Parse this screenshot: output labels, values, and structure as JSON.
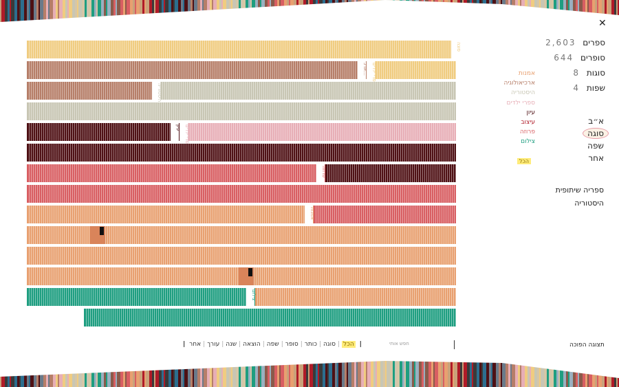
{
  "stats": [
    {
      "num": "2,603",
      "label": "ספרים"
    },
    {
      "num": "644",
      "label": "סופרים"
    },
    {
      "num": "8",
      "label": "סוגות"
    },
    {
      "num": "4",
      "label": "שפות"
    }
  ],
  "legend": [
    {
      "label": "אמנות",
      "color": "#e8a070"
    },
    {
      "label": "ארכיאולוגיה",
      "color": "#b67e68"
    },
    {
      "label": "היסטוריה",
      "color": "#c8c6b4"
    },
    {
      "label": "ספרי ילדים",
      "color": "#e7aeb6"
    },
    {
      "label": "עיון",
      "color": "#4e1014"
    },
    {
      "label": "עיצוב",
      "color": "#b01b28"
    },
    {
      "label": "פרוזה",
      "color": "#d85e62"
    },
    {
      "label": "צילום",
      "color": "#1e9e80"
    }
  ],
  "sort": {
    "items": [
      "א״ב",
      "סוגה",
      "שפה",
      "אחר"
    ],
    "active": 1,
    "all_label": "הכל"
  },
  "links": [
    "ספריה שיתופית",
    "היסטוריה"
  ],
  "toggle_label": "תצוגה הפוכה",
  "search_placeholder": "חפש אותי",
  "filters": {
    "items": [
      "הכל",
      "סוגה",
      "כותר",
      "סופר",
      "שפה",
      "הוצאה",
      "שנה",
      "עורך",
      "אחר"
    ],
    "active": 0
  },
  "shelves": [
    {
      "segments": [
        {
          "color": "#f0cc80",
          "label": "סוגה"
        }
      ]
    },
    {
      "segments": [
        {
          "color": "#f0cc80",
          "label": "ספרי ילדים"
        },
        {
          "color": "#b67e68",
          "label": "ארכ..."
        }
      ]
    },
    {
      "segments": [
        {
          "color": "#c8c6b4",
          "label": "היסטוריה"
        },
        {
          "color": "#b67e68",
          "label": ""
        }
      ]
    },
    {
      "segments": [
        {
          "color": "#c8c6b4",
          "label": ""
        }
      ]
    },
    {
      "segments": [
        {
          "color": "#e7aeb6",
          "label": "ספרי ילדים"
        },
        {
          "color": "#4e1014",
          "label": "עיון"
        }
      ]
    },
    {
      "segments": [
        {
          "color": "#4e1014",
          "label": ""
        }
      ]
    },
    {
      "segments": [
        {
          "color": "#4e1014",
          "label": ""
        },
        {
          "color": "#d85e62",
          "label": "פרוזה"
        }
      ]
    },
    {
      "segments": [
        {
          "color": "#d85e62",
          "label": ""
        }
      ]
    },
    {
      "segments": [
        {
          "color": "#d85e62",
          "label": ""
        },
        {
          "color": "#e8a070",
          "label": "אמנות"
        }
      ]
    },
    {
      "segments": [
        {
          "color": "#e8a070",
          "label": ""
        }
      ]
    },
    {
      "segments": [
        {
          "color": "#e8a070",
          "label": ""
        }
      ]
    },
    {
      "segments": [
        {
          "color": "#e8a070",
          "label": ""
        }
      ]
    },
    {
      "segments": [
        {
          "color": "#e8a070",
          "label": ""
        },
        {
          "color": "#1e9e80",
          "label": "צילום"
        }
      ]
    },
    {
      "segments": [
        {
          "color": "#1e9e80",
          "label": ""
        }
      ]
    }
  ]
}
